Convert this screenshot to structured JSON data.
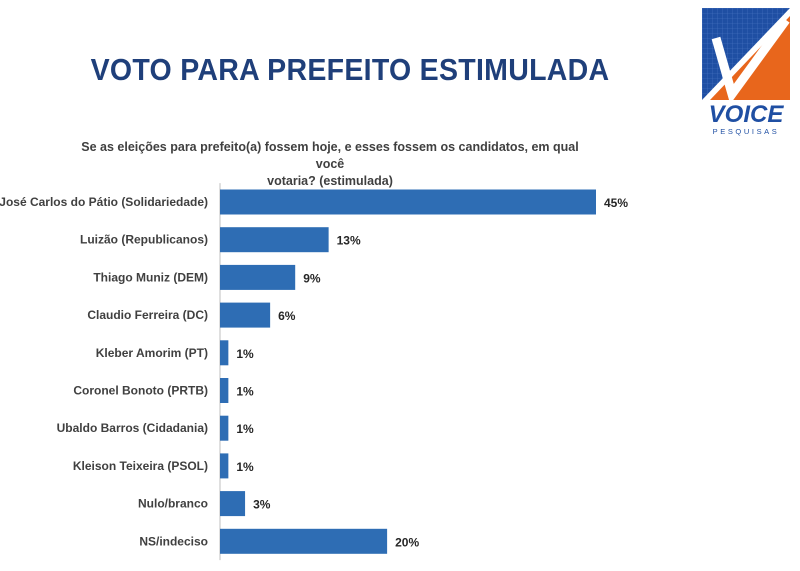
{
  "header": {
    "title": "VOTO PARA PREFEITO ESTIMULADA",
    "question_line1": "Se as eleições para prefeito(a) fossem hoje, e esses fossem os candidatos, em qual você",
    "question_line2": "votaria? (estimulada)"
  },
  "logo": {
    "brand": "VOICE",
    "tagline": "PESQUISAS",
    "colors": {
      "blue": "#1f4fa3",
      "orange": "#e8661c"
    }
  },
  "chart_data": {
    "type": "bar",
    "orientation": "horizontal",
    "categories": [
      "José Carlos do Pátio (Solidariedade)",
      "Luizão (Republicanos)",
      "Thiago Muniz (DEM)",
      "Claudio Ferreira (DC)",
      "Kleber Amorim (PT)",
      "Coronel Bonoto (PRTB)",
      "Ubaldo Barros (Cidadania)",
      "Kleison Teixeira (PSOL)",
      "Nulo/branco",
      "NS/indeciso"
    ],
    "values": [
      45,
      13,
      9,
      6,
      1,
      1,
      1,
      1,
      3,
      20
    ],
    "value_labels": [
      "45%",
      "13%",
      "9%",
      "6%",
      "1%",
      "1%",
      "1%",
      "1%",
      "3%",
      "20%"
    ],
    "unit": "%",
    "xlim": [
      0,
      50
    ],
    "grid": false,
    "bar_color": "#2e6db4"
  }
}
